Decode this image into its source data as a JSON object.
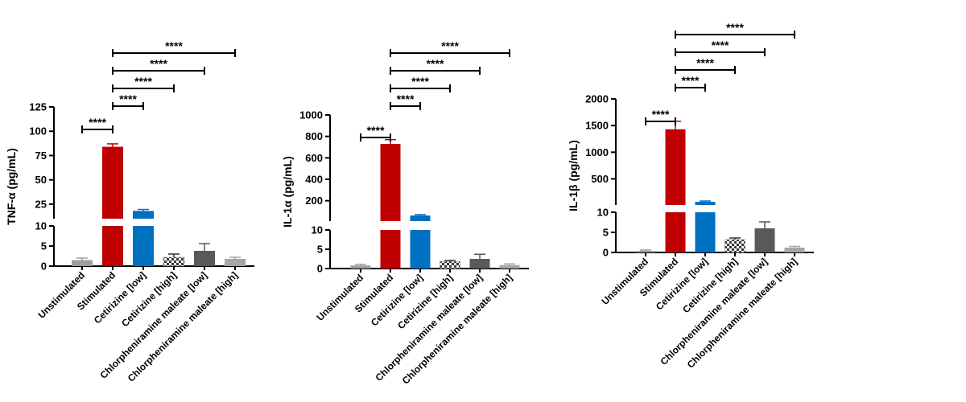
{
  "chart_data": [
    {
      "type": "bar",
      "ylabel": "TNF-α (pg/mL)",
      "categories": [
        "Unstimulated",
        "Stimulated",
        "Cetirizine [low]",
        "Cetirizine [high]",
        "Chlorpheniramine maleate [low]",
        "Chlorpheniramine maleate [high]"
      ],
      "values": [
        1.5,
        84,
        18,
        2.2,
        3.8,
        1.8
      ],
      "errors": [
        0.5,
        3,
        1.5,
        0.8,
        1.8,
        0.4
      ],
      "colors": [
        "#9e9e9e",
        "#c00000",
        "#0070c0",
        "#ffffff",
        "#595959",
        "#a6a6a6"
      ],
      "patterns": [
        "solid",
        "solid",
        "solid",
        "checker",
        "solid",
        "solid"
      ],
      "y_broken_axis": true,
      "ylim_lower": [
        0,
        10
      ],
      "ylim_upper": [
        10,
        125
      ],
      "yticks_lower": [
        "0",
        "5",
        "10"
      ],
      "yticks_upper": [
        "25",
        "50",
        "75",
        "100",
        "125"
      ],
      "significance": [
        {
          "from": "Unstimulated",
          "to": "Stimulated",
          "label": "****"
        },
        {
          "from": "Stimulated",
          "to": "Cetirizine [low]",
          "label": "****"
        },
        {
          "from": "Stimulated",
          "to": "Cetirizine [high]",
          "label": "****"
        },
        {
          "from": "Stimulated",
          "to": "Chlorpheniramine maleate [low]",
          "label": "****"
        },
        {
          "from": "Stimulated",
          "to": "Chlorpheniramine maleate [high]",
          "label": "****"
        }
      ]
    },
    {
      "type": "bar",
      "ylabel": "IL-1α (pg/mL)",
      "categories": [
        "Unstimulated",
        "Stimulated",
        "Cetirizine [low]",
        "Cetirizine [high]",
        "Chlorpheniramine maleate [low]",
        "Chlorpheniramine maleate [high]"
      ],
      "values": [
        0.8,
        730,
        62,
        1.8,
        2.5,
        0.9
      ],
      "errors": [
        0.3,
        40,
        8,
        0.3,
        1.2,
        0.3
      ],
      "colors": [
        "#9e9e9e",
        "#c00000",
        "#0070c0",
        "#ffffff",
        "#595959",
        "#a6a6a6"
      ],
      "patterns": [
        "solid",
        "solid",
        "solid",
        "checker",
        "solid",
        "solid"
      ],
      "y_broken_axis": true,
      "ylim_lower": [
        0,
        10
      ],
      "ylim_upper": [
        10,
        1000
      ],
      "yticks_lower": [
        "0",
        "5",
        "10"
      ],
      "yticks_upper": [
        "200",
        "400",
        "600",
        "800",
        "1000"
      ],
      "significance": [
        {
          "from": "Unstimulated",
          "to": "Stimulated",
          "label": "****"
        },
        {
          "from": "Stimulated",
          "to": "Cetirizine [low]",
          "label": "****"
        },
        {
          "from": "Stimulated",
          "to": "Cetirizine [high]",
          "label": "****"
        },
        {
          "from": "Stimulated",
          "to": "Chlorpheniramine maleate [low]",
          "label": "****"
        },
        {
          "from": "Stimulated",
          "to": "Chlorpheniramine maleate [high]",
          "label": "****"
        }
      ]
    },
    {
      "type": "bar",
      "ylabel": "IL-1β (pg/mL)",
      "categories": [
        "Unstimulated",
        "Stimulated",
        "Cetirizine [low]",
        "Cetirizine [high]",
        "Chlorpheniramine maleate [low]",
        "Chlorpheniramine maleate [high]"
      ],
      "values": [
        0.4,
        1430,
        70,
        3.2,
        6,
        1.2
      ],
      "errors": [
        0.2,
        150,
        15,
        0.4,
        1.6,
        0.3
      ],
      "colors": [
        "#9e9e9e",
        "#c00000",
        "#0070c0",
        "#ffffff",
        "#595959",
        "#a6a6a6"
      ],
      "patterns": [
        "solid",
        "solid",
        "solid",
        "checker",
        "solid",
        "solid"
      ],
      "y_broken_axis": true,
      "ylim_lower": [
        0,
        10
      ],
      "ylim_upper": [
        10,
        2000
      ],
      "yticks_lower": [
        "0",
        "5",
        "10"
      ],
      "yticks_upper": [
        "500",
        "1000",
        "1500",
        "2000"
      ],
      "significance": [
        {
          "from": "Unstimulated",
          "to": "Stimulated",
          "label": "****"
        },
        {
          "from": "Stimulated",
          "to": "Cetirizine [low]",
          "label": "****"
        },
        {
          "from": "Stimulated",
          "to": "Cetirizine [high]",
          "label": "****"
        },
        {
          "from": "Stimulated",
          "to": "Chlorpheniramine maleate [low]",
          "label": "****"
        },
        {
          "from": "Stimulated",
          "to": "Chlorpheniramine maleate [high]",
          "label": "****"
        }
      ]
    }
  ]
}
